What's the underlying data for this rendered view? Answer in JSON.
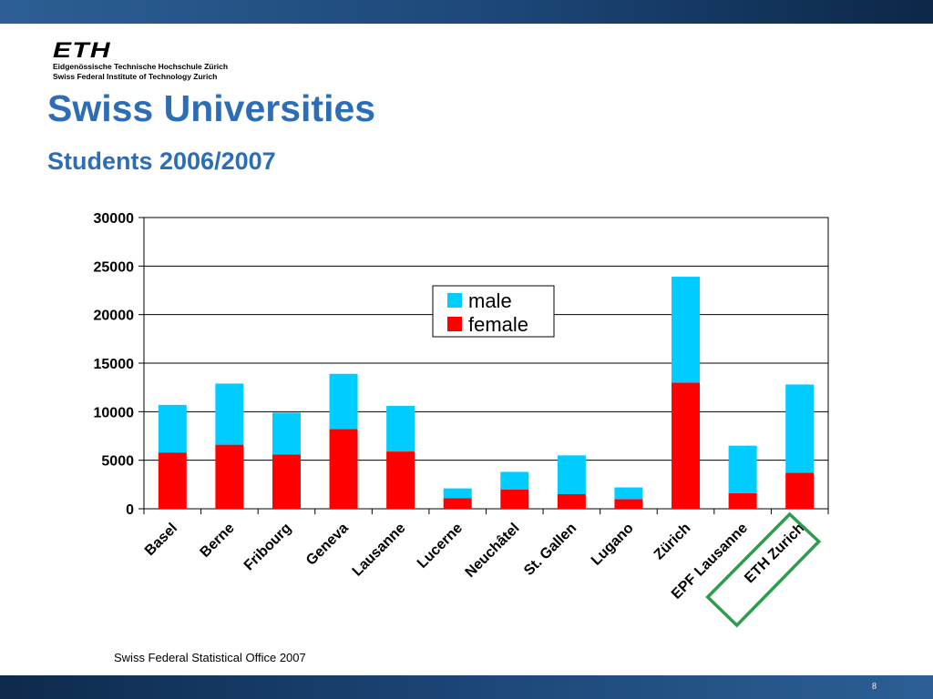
{
  "logo": {
    "mark": "ETH",
    "line1": "Eidgenössische Technische Hochschule Zürich",
    "line2": "Swiss Federal Institute of Technology Zurich"
  },
  "slide": {
    "title": "Swiss Universities",
    "subtitle": "Students 2006/2007",
    "source": "Swiss Federal Statistical Office 2007",
    "page_number": "8"
  },
  "colors": {
    "male": "#00ccff",
    "female": "#ff0000",
    "highlight": "#2e9b4e",
    "title": "#2d6db5"
  },
  "chart_data": {
    "type": "bar",
    "stacked": true,
    "categories": [
      "Basel",
      "Berne",
      "Fribourg",
      "Geneva",
      "Lausanne",
      "Lucerne",
      "Neuchâtel",
      "St. Gallen",
      "Lugano",
      "Zürich",
      "EPF Lausanne",
      "ETH Zurich"
    ],
    "series": [
      {
        "name": "female",
        "values": [
          5800,
          6600,
          5600,
          8200,
          5900,
          1100,
          2000,
          1500,
          1000,
          13000,
          1600,
          3700
        ]
      },
      {
        "name": "male",
        "values": [
          4900,
          6300,
          4300,
          5700,
          4700,
          1000,
          1800,
          4000,
          1200,
          10900,
          4900,
          9100
        ]
      }
    ],
    "title": "",
    "xlabel": "",
    "ylabel": "",
    "ylim": [
      0,
      30000
    ],
    "yticks": [
      0,
      5000,
      10000,
      15000,
      20000,
      25000,
      30000
    ],
    "grid": true,
    "legend": {
      "placement": "top-center",
      "entries": [
        "male",
        "female"
      ]
    },
    "highlighted_category": "ETH Zurich"
  }
}
